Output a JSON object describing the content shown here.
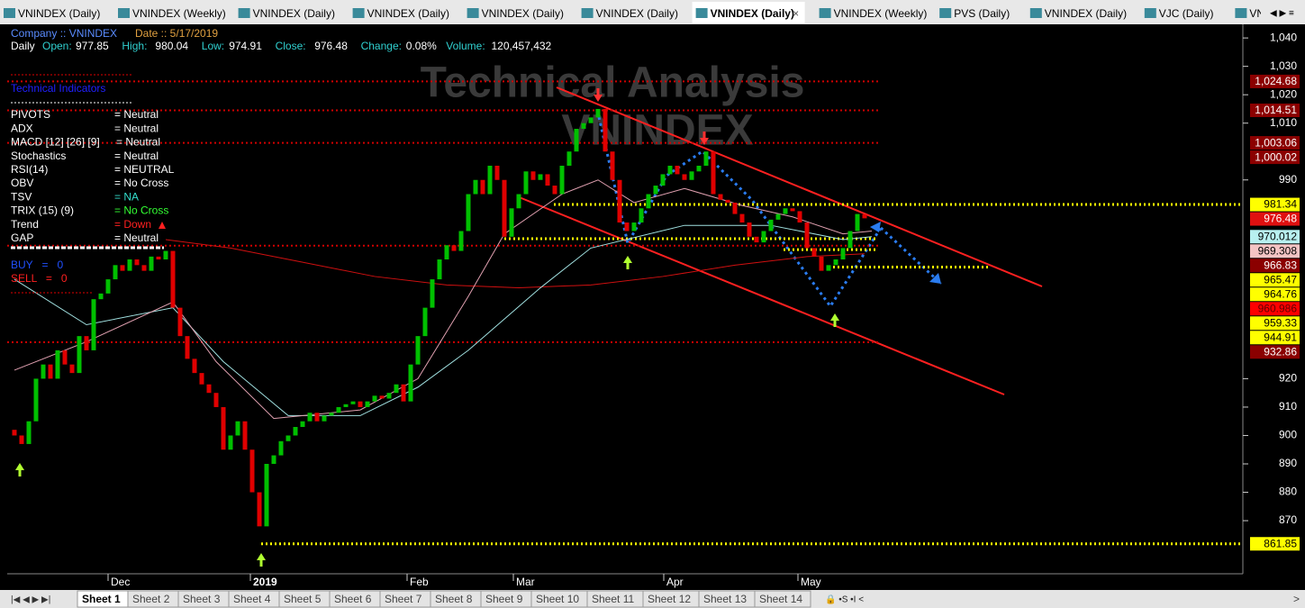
{
  "tabs": [
    "VNINDEX (Daily)",
    "VNINDEX (Weekly)",
    "VNINDEX (Daily)",
    "VNINDEX (Daily)",
    "VNINDEX (Daily)",
    "VNINDEX (Daily)",
    "VNINDEX (Daily)",
    "VNINDEX (Weekly)",
    "PVS (Daily)",
    "VNINDEX (Daily)",
    "VJC (Daily)",
    "VNINDEX"
  ],
  "active_tab": 6,
  "header": {
    "company": "Company :: VNINDEX",
    "date": "Date :: 5/17/2019",
    "period": "Daily",
    "fields": [
      {
        "label": "Open:",
        "value": "977.85"
      },
      {
        "label": "High:",
        "value": "980.04"
      },
      {
        "label": "Low:",
        "value": "974.91"
      },
      {
        "label": "Close:",
        "value": "976.48"
      },
      {
        "label": "Change:",
        "value": "0.08%"
      },
      {
        "label": "Volume:",
        "value": "120,457,432"
      }
    ]
  },
  "indicators": {
    "title": "Technical Indicators",
    "rows": [
      {
        "name": "PIVOTS",
        "value": "= Neutral",
        "color": "#ffffff"
      },
      {
        "name": "ADX",
        "value": "=  Neutral",
        "color": "#ffffff"
      },
      {
        "name": "MACD [12] [26] [9]",
        "value": "=  Neutral",
        "color": "#ffffff"
      },
      {
        "name": "Stochastics",
        "value": "= Neutral",
        "color": "#ffffff"
      },
      {
        "name": "RSI(14)",
        "value": "= NEUTRAL",
        "color": "#ffffff"
      },
      {
        "name": "OBV",
        "value": "= No Cross",
        "color": "#ffffff"
      },
      {
        "name": "TSV",
        "value": "= NA",
        "color": "#33ddcc"
      },
      {
        "name": "TRIX (15) (9)",
        "value": "= No Cross",
        "color": "#33ff33"
      },
      {
        "name": "Trend",
        "value": "= Down",
        "color": "#ff2020"
      },
      {
        "name": "GAP",
        "value": "= Neutral",
        "color": "#ffffff"
      }
    ],
    "buy": "BUY   =   0",
    "sell": "SELL   =   0"
  },
  "sheets": [
    "Sheet 1",
    "Sheet 2",
    "Sheet 3",
    "Sheet 4",
    "Sheet 5",
    "Sheet 6",
    "Sheet 7",
    "Sheet 8",
    "Sheet 9",
    "Sheet 10",
    "Sheet 11",
    "Sheet 12",
    "Sheet 13",
    "Sheet 14"
  ],
  "chart_data": {
    "type": "candlestick",
    "watermark": [
      "Technical Analysis",
      "VNINDEX"
    ],
    "date_labels": [
      "Dec",
      "2019",
      "Feb",
      "Mar",
      "Apr",
      "May"
    ],
    "open": [
      902,
      900,
      897,
      905,
      920,
      925,
      920,
      930,
      925,
      922,
      935,
      930,
      948,
      950,
      955,
      960,
      958,
      962,
      960,
      958,
      963,
      962,
      965,
      945,
      935,
      927,
      922,
      918,
      915,
      910,
      895,
      900,
      905,
      895,
      880,
      868,
      890,
      893,
      898,
      900,
      903,
      905,
      908,
      905,
      907,
      908,
      910,
      911,
      912,
      910,
      912,
      914,
      913,
      915,
      918,
      912,
      925,
      935,
      945,
      955,
      962,
      967,
      965,
      972,
      985,
      990,
      985,
      995,
      990,
      970,
      980,
      985,
      993,
      990,
      992,
      988,
      985,
      995,
      1000,
      1008,
      1010,
      1012,
      1015,
      1000,
      990,
      975,
      972,
      975,
      980,
      985,
      988,
      992,
      995,
      992,
      990,
      993,
      995,
      1000,
      985,
      983,
      982,
      978,
      975,
      970,
      968,
      972,
      976,
      978,
      980,
      979,
      975,
      966,
      963,
      958,
      960,
      962,
      966,
      972,
      977.85
    ],
    "close": [
      900,
      897,
      905,
      920,
      925,
      920,
      930,
      925,
      922,
      935,
      930,
      948,
      950,
      955,
      960,
      958,
      962,
      960,
      958,
      963,
      962,
      965,
      945,
      935,
      927,
      922,
      918,
      915,
      910,
      895,
      900,
      905,
      895,
      880,
      868,
      890,
      893,
      898,
      900,
      903,
      905,
      908,
      905,
      907,
      908,
      910,
      911,
      912,
      910,
      912,
      914,
      913,
      915,
      918,
      912,
      925,
      935,
      945,
      955,
      962,
      967,
      965,
      972,
      985,
      990,
      985,
      995,
      990,
      970,
      980,
      985,
      993,
      990,
      992,
      988,
      985,
      995,
      1000,
      1008,
      1010,
      1012,
      1015,
      1000,
      990,
      975,
      972,
      975,
      980,
      985,
      988,
      992,
      995,
      992,
      990,
      993,
      995,
      1000,
      985,
      983,
      982,
      978,
      975,
      970,
      968,
      972,
      976,
      978,
      980,
      979,
      975,
      966,
      963,
      958,
      960,
      962,
      966,
      972,
      978,
      976.48
    ],
    "up_color": "#00c000",
    "down_color": "#e00000",
    "series": [
      {
        "name": "MA long",
        "color": "#d01010",
        "x": [
          21,
          30,
          40,
          50,
          60,
          70,
          80,
          90,
          100,
          110,
          118
        ],
        "values": [
          969,
          966,
          961,
          956,
          953,
          952,
          953,
          956,
          960,
          963,
          964
        ]
      },
      {
        "name": "MA medium",
        "color": "#a0e0e0",
        "x": [
          0,
          10,
          22,
          29,
          38,
          48,
          56,
          63,
          73,
          80,
          93,
          105,
          115,
          119
        ],
        "values": [
          955,
          939,
          945,
          926,
          907,
          907,
          917,
          930,
          952,
          966,
          974,
          974,
          969,
          970
        ]
      },
      {
        "name": "MA short",
        "color": "#e0a0b0",
        "x": [
          0,
          10,
          22,
          28,
          36,
          48,
          56,
          63,
          68,
          76,
          81,
          86,
          93,
          101,
          108,
          115,
          119
        ],
        "values": [
          923,
          933,
          947,
          926,
          906,
          909,
          920,
          949,
          971,
          985,
          990,
          982,
          987,
          981,
          977,
          971,
          972
        ]
      }
    ],
    "ylim": [
      851.3,
      1044.8
    ],
    "yticks": [
      {
        "value": 1040,
        "label": "1,040"
      },
      {
        "value": 1030,
        "label": "1,030"
      },
      {
        "value": 1020,
        "label": "1,020"
      },
      {
        "value": 1010,
        "label": "1,010"
      },
      990,
      920,
      910,
      900,
      890,
      880,
      870
    ],
    "price_labels": [
      {
        "value": 1024.68,
        "label": "1,024.68",
        "bg": "#8b0000",
        "fg": "#ffffff",
        "line": "red"
      },
      {
        "value": 1014.51,
        "label": "1,014.51",
        "bg": "#8b0000",
        "fg": "#ffffff",
        "line": "red"
      },
      {
        "value": 1003.06,
        "label": "1,003.06",
        "bg": "#8b0000",
        "fg": "#ffffff",
        "line": "red"
      },
      {
        "value": 1000.02,
        "label": "1,000.02",
        "bg": "#8b0000",
        "fg": "#ffffff"
      },
      {
        "value": 981.34,
        "label": "981.34",
        "bg": "#ffff00",
        "fg": "#000000",
        "line": "yellow"
      },
      {
        "value": 976.48,
        "label": "976.48",
        "bg": "#e01010",
        "fg": "#ffffff"
      },
      {
        "value": 970.012,
        "label": "970.012",
        "bg": "#b8f0f0",
        "fg": "#000000"
      },
      {
        "value": 969.308,
        "label": "969.308",
        "bg": "#f4c4c4",
        "fg": "#000000",
        "line": "yellow"
      },
      {
        "value": 966.83,
        "label": "966.83",
        "bg": "#8b0000",
        "fg": "#ffffff",
        "line": "red"
      },
      {
        "value": 965.47,
        "label": "965.47",
        "bg": "#ffff00",
        "fg": "#000000",
        "line": "yellow"
      },
      {
        "value": 964.76,
        "label": "964.76",
        "bg": "#ffff00",
        "fg": "#000000"
      },
      {
        "value": 960.986,
        "label": "960.986",
        "bg": "#ff0000",
        "fg": "#600000"
      },
      {
        "value": 959.33,
        "label": "959.33",
        "bg": "#ffff00",
        "fg": "#000000",
        "line": "yellow"
      },
      {
        "value": 944.91,
        "label": "944.91",
        "bg": "#ffff00",
        "fg": "#000000"
      },
      {
        "value": 932.86,
        "label": "932.86",
        "bg": "#8b0000",
        "fg": "#ffffff",
        "line": "red"
      },
      {
        "value": 861.85,
        "label": "861.85",
        "bg": "#ffff00",
        "fg": "#000000",
        "line": "yellow"
      }
    ]
  }
}
